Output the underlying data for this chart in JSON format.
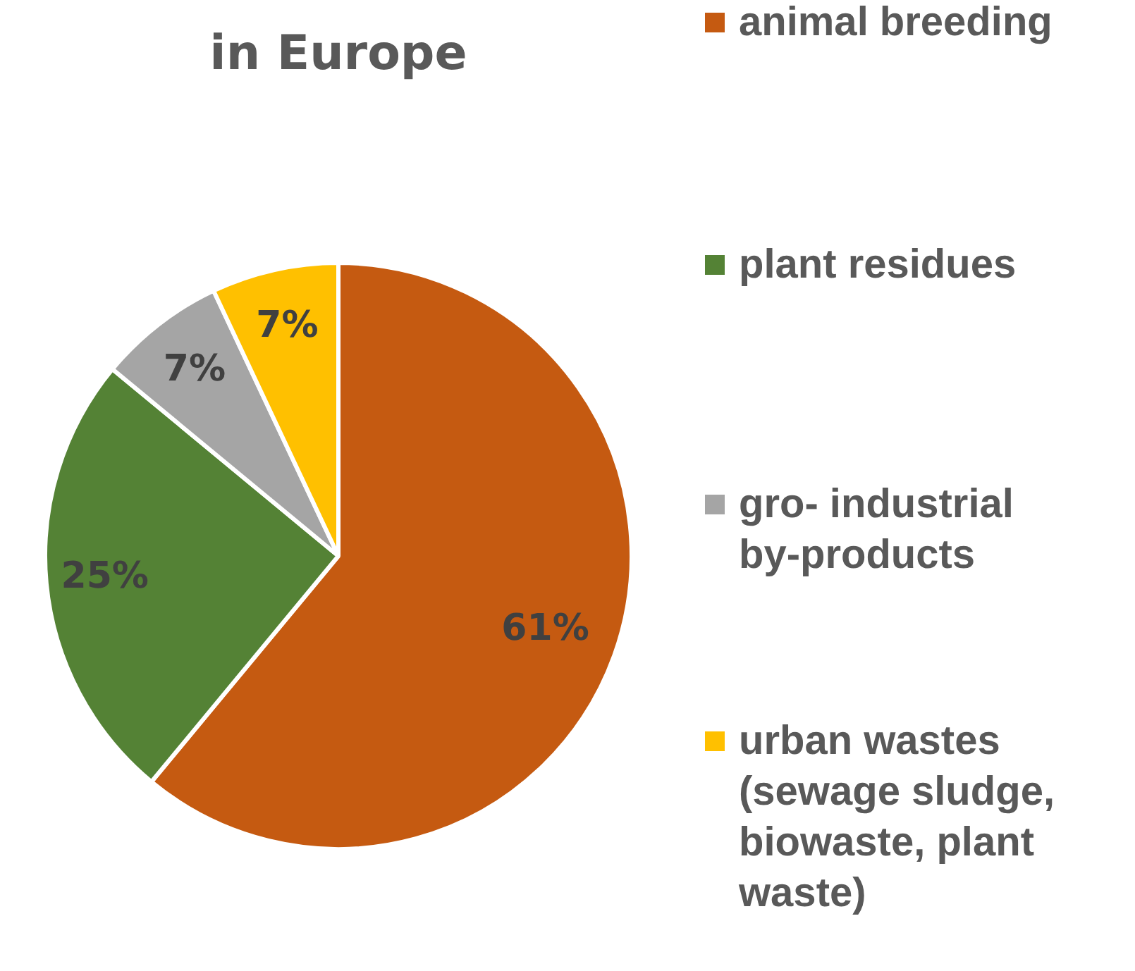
{
  "chart_data": {
    "type": "pie",
    "title": "in Europe",
    "categories": [
      "animal breeding",
      "plant residues",
      "gro- industrial by-products",
      "urban wastes (sewage sludge, biowaste, plant waste)"
    ],
    "values": [
      61,
      25,
      7,
      7
    ],
    "colors": [
      "#c55a11",
      "#548235",
      "#a5a5a5",
      "#ffc000"
    ],
    "value_labels": [
      "61%",
      "25%",
      "7%",
      "7%"
    ],
    "legend": "right"
  }
}
